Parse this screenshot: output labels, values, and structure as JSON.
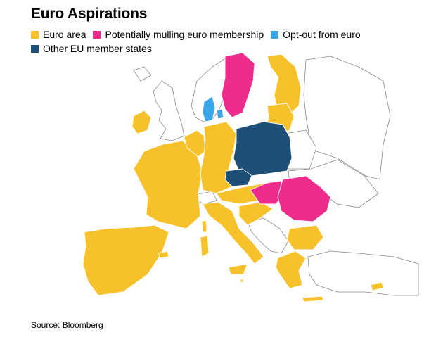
{
  "title": "Euro Aspirations",
  "legend": [
    {
      "label": "Euro area",
      "color": "#f6c12a"
    },
    {
      "label": "Potentially mulling euro membership",
      "color": "#ef2c8b"
    },
    {
      "label": "Opt-out from euro",
      "color": "#3aa6ea"
    },
    {
      "label": "Other EU member states",
      "color": "#1e4f77"
    }
  ],
  "source": "Source: Bloomberg",
  "colors": {
    "euro_area": "#f6c12a",
    "mulling": "#ef2c8b",
    "opt_out": "#3aa6ea",
    "other_eu": "#1e4f77",
    "non_eu": "#ffffff",
    "border": "#8a8a8a"
  }
}
